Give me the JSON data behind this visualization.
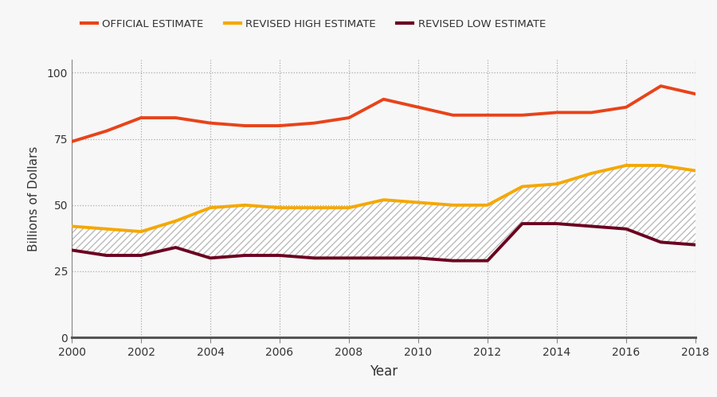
{
  "years": [
    2000,
    2001,
    2002,
    2003,
    2004,
    2005,
    2006,
    2007,
    2008,
    2009,
    2010,
    2011,
    2012,
    2013,
    2014,
    2015,
    2016,
    2017,
    2018
  ],
  "official_estimate": [
    74,
    78,
    83,
    83,
    81,
    80,
    80,
    81,
    83,
    90,
    87,
    84,
    84,
    84,
    85,
    85,
    87,
    95,
    92
  ],
  "revised_high": [
    42,
    41,
    40,
    44,
    49,
    50,
    49,
    49,
    49,
    52,
    51,
    50,
    50,
    57,
    58,
    62,
    65,
    65,
    63
  ],
  "revised_low": [
    33,
    31,
    31,
    34,
    30,
    31,
    31,
    30,
    30,
    30,
    30,
    29,
    29,
    43,
    43,
    42,
    41,
    36,
    35
  ],
  "official_color": "#E8431A",
  "high_color": "#F5A800",
  "low_color": "#6B0020",
  "background_color": "#f7f7f7",
  "grid_color": "#aaaaaa",
  "ylabel": "Billions of Dollars",
  "xlabel": "Year",
  "ylim": [
    0,
    105
  ],
  "yticks": [
    0,
    25,
    50,
    75,
    100
  ],
  "legend_labels": [
    "OFFICIAL ESTIMATE",
    "REVISED HIGH ESTIMATE",
    "REVISED LOW ESTIMATE"
  ],
  "line_width": 2.8
}
